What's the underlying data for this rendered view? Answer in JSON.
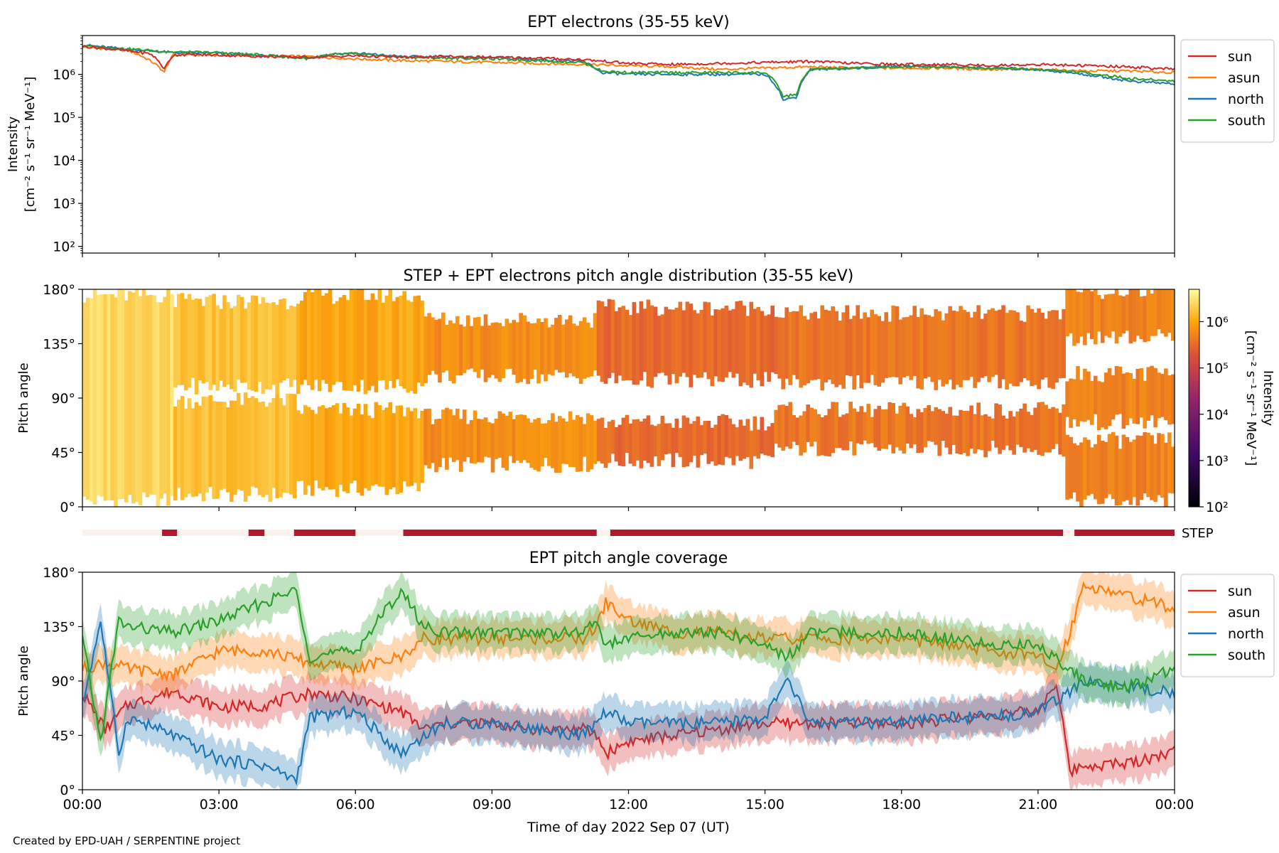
{
  "footer": "Created by EPD-UAH / SERPENTINE project",
  "xlabel": "Time of day 2022 Sep 07 (UT)",
  "x_ticks": [
    "00:00",
    "03:00",
    "06:00",
    "09:00",
    "12:00",
    "15:00",
    "18:00",
    "21:00",
    "00:00"
  ],
  "colors": {
    "sun": "#d62728",
    "asun": "#ff7f0e",
    "north": "#1f77b4",
    "south": "#2ca02c",
    "step": "#b2182b"
  },
  "chart_data": [
    {
      "type": "line",
      "title": "EPT electrons (35-55 keV)",
      "ylabel": [
        "Intensity",
        "[cm⁻² s⁻¹ sr⁻¹ MeV⁻¹]"
      ],
      "yscale": "log",
      "ylim": [
        70,
        8000000
      ],
      "y_ticks": [
        "10²",
        "10³",
        "10⁴",
        "10⁵",
        "10⁶"
      ],
      "x_unit": "hours",
      "legend": "outside-right",
      "series": [
        {
          "name": "sun",
          "x": [
            0,
            1,
            1.5,
            1.8,
            2.0,
            2.2,
            3,
            4,
            5,
            6,
            7,
            8,
            9,
            10,
            11,
            12,
            13,
            14,
            15,
            16,
            17,
            18,
            19,
            20,
            21,
            22,
            23,
            24
          ],
          "y": [
            4500000,
            3500000,
            3000000,
            1300000,
            2800000,
            2900000,
            2800000,
            2600000,
            2500000,
            2700000,
            2500000,
            2600000,
            2500000,
            2400000,
            2200000,
            1800000,
            1700000,
            1800000,
            1900000,
            2000000,
            1800000,
            1700000,
            1700000,
            1600000,
            1700000,
            1600000,
            1500000,
            1300000
          ]
        },
        {
          "name": "asun",
          "x": [
            0,
            1,
            1.8,
            2.0,
            2.2,
            3,
            4,
            5,
            6,
            7,
            8,
            9,
            10,
            11,
            12,
            13,
            14,
            15,
            16,
            17,
            18,
            19,
            20,
            21,
            22,
            23,
            24
          ],
          "y": [
            4300000,
            3600000,
            1100000,
            2800000,
            2900000,
            2800000,
            2700000,
            2600000,
            2300000,
            2100000,
            2000000,
            1900000,
            1800000,
            1700000,
            1600000,
            1500000,
            1300000,
            1400000,
            1500000,
            1400000,
            1400000,
            1400000,
            1300000,
            1300000,
            1200000,
            1200000,
            1100000
          ]
        },
        {
          "name": "north",
          "x": [
            0,
            1,
            2,
            3,
            4,
            5,
            5.5,
            6,
            7,
            8,
            9,
            10,
            11,
            11.4,
            12,
            13,
            14,
            15,
            15.4,
            15.7,
            16,
            17,
            18,
            19,
            20,
            21,
            22,
            23,
            24
          ],
          "y": [
            4800000,
            3800000,
            3200000,
            3100000,
            2700000,
            2400000,
            3000000,
            3100000,
            2600000,
            2500000,
            2400000,
            2200000,
            2000000,
            1100000,
            1000000,
            1000000,
            1000000,
            1000000,
            250000,
            300000,
            1300000,
            1400000,
            1600000,
            1500000,
            1400000,
            1300000,
            1000000,
            700000,
            600000
          ]
        },
        {
          "name": "south",
          "x": [
            0,
            1,
            2,
            3,
            4,
            5,
            5.5,
            6,
            7,
            8,
            9,
            10,
            11,
            11.4,
            12,
            13,
            14,
            15,
            15.4,
            15.7,
            16,
            17,
            18,
            19,
            20,
            21,
            22,
            23,
            24
          ],
          "y": [
            4600000,
            3900000,
            3300000,
            3200000,
            2800000,
            2300000,
            2900000,
            3000000,
            2500000,
            2400000,
            2300000,
            2100000,
            1900000,
            1200000,
            1100000,
            1100000,
            1100000,
            1100000,
            300000,
            350000,
            1300000,
            1400000,
            1500000,
            1500000,
            1400000,
            1300000,
            1100000,
            800000,
            700000
          ]
        }
      ]
    },
    {
      "type": "heatmap",
      "title": "STEP + EPT electrons pitch angle distribution (35-55 keV)",
      "ylabel": "Pitch angle",
      "y_ticks": [
        "0°",
        "45°",
        "90°",
        "135°",
        "180°"
      ],
      "colorbar": {
        "label": "Intensity",
        "unit": "[cm⁻² s⁻¹ sr⁻¹ MeV⁻¹]",
        "ticks": [
          "10²",
          "10³",
          "10⁴",
          "10⁵",
          "10⁶"
        ],
        "colormap": "inferno",
        "range": [
          100,
          5000000
        ]
      },
      "segments": [
        {
          "x": [
            0,
            2.0
          ],
          "bands": [
            [
              5,
              175
            ]
          ],
          "log_intensity": 6.4
        },
        {
          "x": [
            2.0,
            4.7
          ],
          "bands": [
            [
              10,
              88
            ],
            [
              100,
              170
            ]
          ],
          "log_intensity": 6.2
        },
        {
          "x": [
            4.7,
            7.5
          ],
          "bands": [
            [
              15,
              80
            ],
            [
              100,
              175
            ]
          ],
          "log_intensity": 6.0
        },
        {
          "x": [
            7.5,
            11.3
          ],
          "bands": [
            [
              35,
              75
            ],
            [
              108,
              155
            ]
          ],
          "log_intensity": 5.8
        },
        {
          "x": [
            11.3,
            15.2
          ],
          "bands": [
            [
              38,
              70
            ],
            [
              105,
              165
            ]
          ],
          "log_intensity": 5.5
        },
        {
          "x": [
            15.2,
            21.6
          ],
          "bands": [
            [
              48,
              80
            ],
            [
              103,
              160
            ]
          ],
          "log_intensity": 5.6
        },
        {
          "x": [
            21.6,
            24
          ],
          "bands": [
            [
              5,
              55
            ],
            [
              70,
              110
            ],
            [
              140,
              178
            ]
          ],
          "log_intensity": 5.7
        }
      ]
    },
    {
      "type": "bar",
      "label": "STEP",
      "active_intervals_hours": [
        [
          1.75,
          2.08
        ],
        [
          3.65,
          4.0
        ],
        [
          4.65,
          6.0
        ],
        [
          7.05,
          11.3
        ],
        [
          11.6,
          21.55
        ],
        [
          21.8,
          24
        ]
      ]
    },
    {
      "type": "line",
      "title": "EPT pitch angle coverage",
      "ylabel": "Pitch angle",
      "y_ticks": [
        "0°",
        "45°",
        "90°",
        "135°",
        "180°"
      ],
      "legend": "outside-right",
      "band_halfwidth_deg": 15,
      "series": [
        {
          "name": "sun",
          "x": [
            0,
            0.5,
            1,
            2,
            3,
            4,
            5,
            6,
            7,
            7.5,
            8,
            9,
            10,
            11,
            11.3,
            11.5,
            12,
            13,
            14,
            15,
            16,
            17,
            18,
            19,
            20,
            21,
            21.4,
            21.7,
            22,
            23,
            24
          ],
          "y": [
            80,
            50,
            70,
            82,
            68,
            70,
            80,
            75,
            65,
            50,
            55,
            55,
            50,
            50,
            45,
            30,
            40,
            45,
            50,
            55,
            55,
            55,
            55,
            58,
            62,
            65,
            90,
            15,
            20,
            22,
            32
          ]
        },
        {
          "name": "asun",
          "x": [
            0,
            0.5,
            1,
            2,
            3,
            4,
            5,
            6,
            7,
            7.5,
            8,
            9,
            10,
            11,
            11.3,
            11.5,
            12,
            13,
            14,
            15,
            16,
            17,
            18,
            19,
            20,
            21,
            21.4,
            21.7,
            22,
            23,
            24
          ],
          "y": [
            100,
            105,
            100,
            95,
            115,
            115,
            105,
            100,
            110,
            125,
            125,
            125,
            125,
            125,
            135,
            155,
            140,
            130,
            130,
            125,
            125,
            125,
            125,
            120,
            115,
            110,
            100,
            130,
            170,
            160,
            150
          ]
        },
        {
          "name": "north",
          "x": [
            0,
            0.4,
            0.8,
            1,
            2,
            3,
            4,
            4.7,
            5,
            6,
            7,
            7.5,
            8,
            9,
            10,
            11,
            11.3,
            11.5,
            12,
            13,
            14,
            15,
            15.5,
            16,
            17,
            18,
            19,
            20,
            21,
            21.7,
            22,
            23,
            24
          ],
          "y": [
            70,
            140,
            30,
            60,
            45,
            25,
            20,
            8,
            60,
            65,
            30,
            45,
            55,
            55,
            50,
            45,
            55,
            65,
            55,
            55,
            55,
            60,
            90,
            55,
            55,
            55,
            60,
            60,
            65,
            80,
            90,
            85,
            80
          ]
        },
        {
          "name": "south",
          "x": [
            0,
            0.4,
            0.8,
            1,
            2,
            3,
            4,
            4.7,
            5,
            6,
            7,
            7.5,
            8,
            9,
            10,
            11,
            11.3,
            11.5,
            12,
            13,
            14,
            15,
            15.5,
            16,
            17,
            18,
            19,
            20,
            21,
            21.7,
            22,
            23,
            24
          ],
          "y": [
            125,
            40,
            140,
            135,
            130,
            140,
            155,
            165,
            110,
            115,
            165,
            135,
            130,
            130,
            130,
            130,
            140,
            120,
            125,
            130,
            130,
            120,
            110,
            130,
            130,
            130,
            125,
            120,
            120,
            100,
            90,
            85,
            100
          ]
        }
      ]
    }
  ]
}
